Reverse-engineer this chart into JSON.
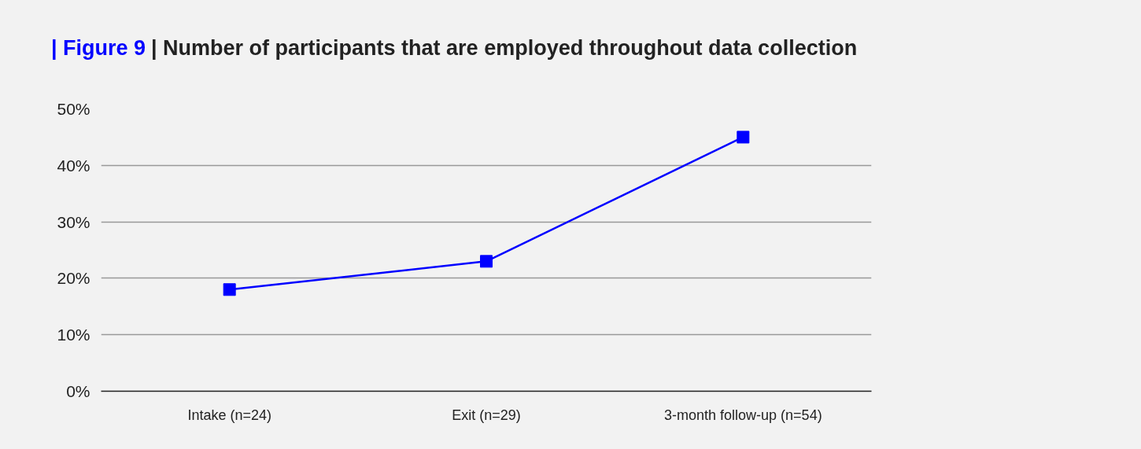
{
  "chart_data": {
    "type": "line",
    "title": "| Figure 9",
    "subtitle": "| Number of participants that are employed throughout data collection",
    "categories": [
      "Intake (n=24)",
      "Exit (n=29)",
      "3-month follow-up (n=54)"
    ],
    "series": [
      {
        "color": "#0000ff",
        "values": [
          18,
          23,
          45
        ]
      }
    ],
    "ylim": [
      0,
      50
    ],
    "yticks": [
      {
        "value": 0,
        "label": "0%"
      },
      {
        "value": 10,
        "label": "10%"
      },
      {
        "value": 20,
        "label": "20%"
      },
      {
        "value": 30,
        "label": "30%"
      },
      {
        "value": 40,
        "label": "40%"
      },
      {
        "value": 50,
        "label": "50%"
      }
    ],
    "grid": "y",
    "marker": "square",
    "line_style": "solid"
  }
}
